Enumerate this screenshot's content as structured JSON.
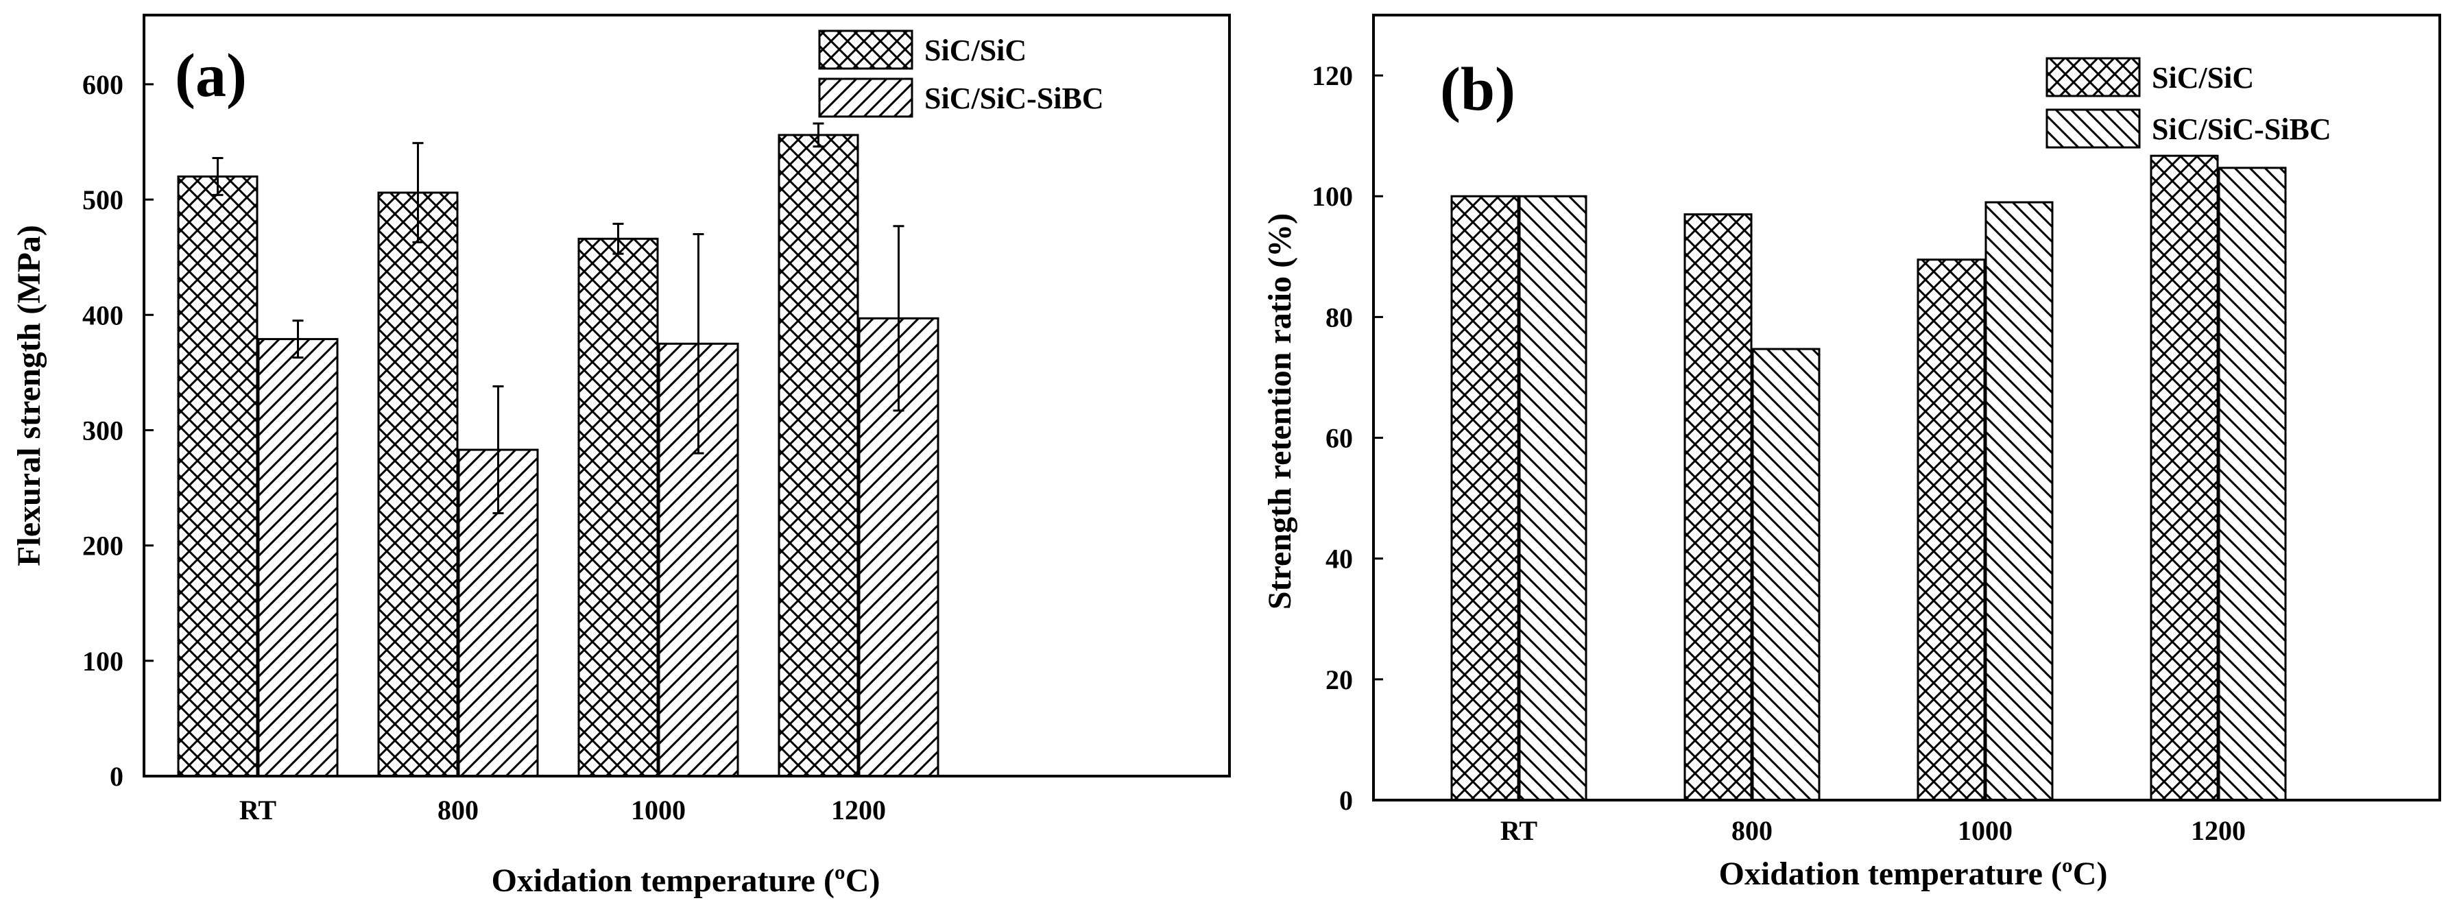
{
  "chart_data": [
    {
      "type": "bar",
      "panel_label": "(a)",
      "title": "",
      "xlabel": "Oxidation temperature (ºC)",
      "ylabel": "Flexural strength (MPa)",
      "categories": [
        "RT",
        "800",
        "1000",
        "1200"
      ],
      "ylim": [
        0,
        660
      ],
      "yticks": [
        0,
        100,
        200,
        300,
        400,
        500,
        600
      ],
      "legend_position": "top-right",
      "grid": false,
      "series": [
        {
          "name": "SiC/SiC",
          "pattern": "crosshatch",
          "values": [
            520,
            506,
            466,
            556
          ],
          "errors": [
            16,
            43,
            13,
            10
          ]
        },
        {
          "name": "SiC/SiC-SiBC",
          "pattern": "diagonal-up",
          "values": [
            379,
            283,
            375,
            397
          ],
          "errors": [
            16,
            55,
            95,
            80
          ]
        }
      ]
    },
    {
      "type": "bar",
      "panel_label": "(b)",
      "title": "",
      "xlabel": "Oxidation temperature (ºC)",
      "ylabel": "Strength retention ratio (%)",
      "categories": [
        "RT",
        "800",
        "1000",
        "1200"
      ],
      "ylim": [
        0,
        130
      ],
      "yticks": [
        0,
        20,
        40,
        60,
        80,
        100,
        120
      ],
      "legend_position": "top-right",
      "grid": false,
      "series": [
        {
          "name": "SiC/SiC",
          "pattern": "crosshatch",
          "values": [
            100,
            97,
            89.5,
            106.7
          ]
        },
        {
          "name": "SiC/SiC-SiBC",
          "pattern": "diagonal-down",
          "values": [
            100,
            74.7,
            99,
            104.7
          ]
        }
      ]
    }
  ]
}
